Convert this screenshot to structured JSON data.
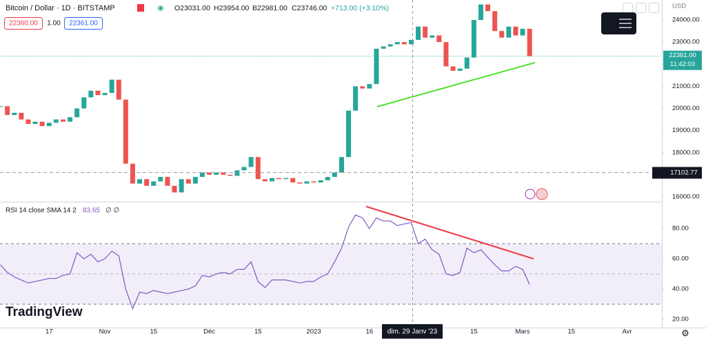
{
  "header": {
    "symbol": "Bitcoin / Dollar · 1D · BITSTAMP",
    "open": "O23031.00",
    "high": "H23954.00",
    "low": "B22981.00",
    "close": "C23746.00",
    "change": "+713.00 (+3.10%)",
    "sell": "22360.00",
    "spread": "1.00",
    "buy": "22361.00",
    "currency": "USD",
    "countdown": "11:42:03",
    "logo": "TradingView",
    "crosshair_date": "dim. 29 Janv '23"
  },
  "chart_data": [
    {
      "type": "candlestick",
      "categories": [
        null,
        null,
        null,
        null,
        null,
        null,
        null,
        "17",
        null,
        null,
        null,
        null,
        null,
        null,
        null,
        "Nov",
        null,
        null,
        null,
        null,
        null,
        null,
        "15",
        null,
        null,
        null,
        null,
        null,
        null,
        null,
        "Déc",
        null,
        null,
        null,
        null,
        null,
        null,
        "15",
        null,
        null,
        null,
        null,
        null,
        null,
        null,
        "2023",
        null,
        null,
        null,
        null,
        null,
        null,
        null,
        "16",
        null,
        null,
        null,
        null,
        null,
        null,
        null,
        null,
        null,
        null,
        null,
        null,
        null,
        null,
        "15",
        null,
        null,
        null,
        null,
        null,
        null,
        "Mars",
        null,
        null,
        null,
        null,
        null,
        null,
        "15",
        null,
        null,
        null,
        null,
        null,
        null,
        null,
        "Avr",
        null,
        null,
        null,
        null
      ],
      "values": [
        20100,
        19700,
        19800,
        19500,
        19300,
        19400,
        19200,
        19350,
        19500,
        19400,
        19600,
        20000,
        20500,
        20800,
        20600,
        20700,
        21300,
        20400,
        17500,
        16600,
        16800,
        16500,
        16700,
        16900,
        16500,
        16200,
        16800,
        16600,
        16900,
        17100,
        17000,
        17100,
        17000,
        16950,
        17200,
        17350,
        17800,
        16800,
        16700,
        16850,
        16800,
        16850,
        16650,
        16600,
        16700,
        16650,
        16750,
        16900,
        17100,
        17800,
        19900,
        21000,
        20900,
        21100,
        22700,
        22800,
        22900,
        23000,
        22900,
        23100,
        23700,
        23200,
        23300,
        23000,
        21900,
        21700,
        21800,
        22300,
        24000,
        24700,
        24400,
        23500,
        23200,
        23700,
        23300,
        23600,
        22361,
        null,
        null,
        null,
        null,
        null,
        null,
        null,
        null,
        null,
        null,
        null,
        null,
        null,
        null,
        null,
        null,
        null,
        null
      ],
      "up_color": "#26a69a",
      "down_color": "#ef5350",
      "ylim": [
        15813,
        24903
      ],
      "yticks": [
        {
          "value": 16000,
          "label": "16000.00"
        },
        {
          "value": 17000,
          "label": "17000.00"
        },
        {
          "value": 18000,
          "label": "18000.00"
        },
        {
          "value": 19000,
          "label": "19000.00"
        },
        {
          "value": 20000,
          "label": "20000.00"
        },
        {
          "value": 21000,
          "label": "21000.00"
        },
        {
          "value": 22000,
          "label": "22000.00"
        },
        {
          "value": 23000,
          "label": "23000.00"
        },
        {
          "value": 24000,
          "label": "24000.00"
        }
      ],
      "last_price": {
        "value": 22361,
        "label": "22361.00"
      },
      "horizontal_line": {
        "value": 17102.77,
        "label": "17102.77"
      }
    },
    {
      "type": "line",
      "title": "RSI 14 close SMA 14 2",
      "last_value": "83.65",
      "extra": "∅ ∅",
      "color": "#7e57c2",
      "values": [
        56,
        51,
        48,
        46,
        44,
        45,
        46,
        47,
        47,
        49,
        50,
        64,
        60,
        63,
        58,
        60,
        65,
        62,
        40,
        27,
        38,
        37,
        39,
        38,
        37,
        38,
        39,
        40,
        42,
        49,
        48,
        50,
        51,
        50,
        53,
        53,
        58,
        45,
        41,
        46,
        46,
        46,
        45,
        44,
        45,
        45,
        48,
        50,
        58,
        67,
        81,
        89,
        87,
        80,
        87,
        85,
        85,
        82,
        83,
        84,
        70,
        73,
        66,
        63,
        50,
        49,
        51,
        67,
        64,
        66,
        61,
        56,
        52,
        52,
        55,
        53,
        43,
        null,
        null,
        null,
        null,
        null,
        null,
        null,
        null,
        null,
        null,
        null,
        null,
        null,
        null,
        null,
        null,
        null,
        null
      ],
      "band": [
        30,
        70
      ],
      "midline": 50,
      "ylim": [
        14.5,
        95.5
      ],
      "yticks": [
        {
          "value": 20,
          "label": "20.00"
        },
        {
          "value": 40,
          "label": "40.00"
        },
        {
          "value": 60,
          "label": "60.00"
        },
        {
          "value": 80,
          "label": "80.00"
        }
      ]
    }
  ]
}
